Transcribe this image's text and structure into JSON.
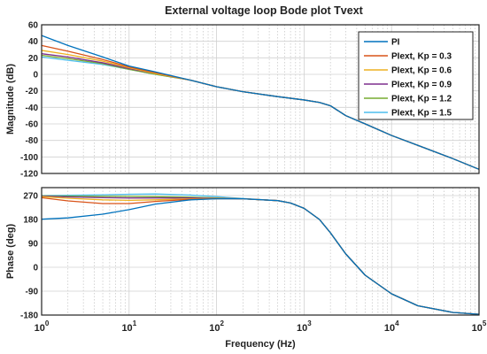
{
  "chart_data": [
    {
      "type": "line",
      "title": "External voltage loop Bode plot Tvext",
      "ylabel": "Magnitude (dB)",
      "xscale": "log",
      "xlim": [
        1,
        100000
      ],
      "ylim": [
        -120,
        60
      ],
      "xticks": [
        1,
        10,
        100,
        1000,
        10000,
        100000
      ],
      "xtick_labels": [
        {
          "base": "10",
          "exp": "0"
        },
        {
          "base": "10",
          "exp": "1"
        },
        {
          "base": "10",
          "exp": "2"
        },
        {
          "base": "10",
          "exp": "3"
        },
        {
          "base": "10",
          "exp": "4"
        },
        {
          "base": "10",
          "exp": "5"
        }
      ],
      "yticks": [
        60,
        40,
        20,
        0,
        -20,
        -40,
        -60,
        -80,
        -100,
        -120
      ],
      "grid": true,
      "legend_position": "top-right",
      "series": [
        {
          "name": "PI",
          "color": "#0072BD",
          "x": [
            1,
            2,
            5,
            10,
            20,
            50,
            100,
            200,
            500,
            1000,
            1500,
            2000,
            3000,
            5000,
            10000,
            20000,
            50000,
            100000
          ],
          "y": [
            47,
            35,
            21,
            10,
            3,
            -7,
            -15,
            -21,
            -27,
            -31,
            -34,
            -38,
            -50,
            -60,
            -74,
            -86,
            -102,
            -115
          ]
        },
        {
          "name": "PIext, Kp = 0.3",
          "color": "#D95319",
          "x": [
            1,
            2,
            5,
            10,
            20,
            50,
            100,
            200,
            500,
            1000,
            1500,
            2000,
            3000,
            5000,
            10000,
            20000,
            50000,
            100000
          ],
          "y": [
            35,
            28,
            18,
            9,
            2,
            -7,
            -15,
            -21,
            -27,
            -31,
            -34,
            -38,
            -50,
            -60,
            -74,
            -86,
            -102,
            -115
          ]
        },
        {
          "name": "PIext, Kp = 0.6",
          "color": "#EDB120",
          "x": [
            1,
            2,
            5,
            10,
            20,
            50,
            100,
            200,
            500,
            1000,
            1500,
            2000,
            3000,
            5000,
            10000,
            20000,
            50000,
            100000
          ],
          "y": [
            29,
            24,
            16,
            8,
            1,
            -7,
            -15,
            -21,
            -27,
            -31,
            -34,
            -38,
            -50,
            -60,
            -74,
            -86,
            -102,
            -115
          ]
        },
        {
          "name": "PIext, Kp = 0.9",
          "color": "#7E2F8E",
          "x": [
            1,
            2,
            5,
            10,
            20,
            50,
            100,
            200,
            500,
            1000,
            1500,
            2000,
            3000,
            5000,
            10000,
            20000,
            50000,
            100000
          ],
          "y": [
            25,
            21,
            14,
            7,
            1,
            -7,
            -15,
            -21,
            -27,
            -31,
            -34,
            -38,
            -50,
            -60,
            -74,
            -86,
            -102,
            -115
          ]
        },
        {
          "name": "PIext, Kp = 1.2",
          "color": "#77AC30",
          "x": [
            1,
            2,
            5,
            10,
            20,
            50,
            100,
            200,
            500,
            1000,
            1500,
            2000,
            3000,
            5000,
            10000,
            20000,
            50000,
            100000
          ],
          "y": [
            23,
            19,
            13,
            6,
            0,
            -7,
            -15,
            -21,
            -27,
            -31,
            -34,
            -38,
            -50,
            -60,
            -74,
            -86,
            -102,
            -115
          ]
        },
        {
          "name": "PIext, Kp = 1.5",
          "color": "#4DBEEE",
          "x": [
            1,
            2,
            5,
            10,
            20,
            50,
            100,
            200,
            500,
            1000,
            1500,
            2000,
            3000,
            5000,
            10000,
            20000,
            50000,
            100000
          ],
          "y": [
            21,
            17,
            12,
            6,
            0,
            -7,
            -15,
            -21,
            -27,
            -31,
            -34,
            -38,
            -50,
            -60,
            -74,
            -86,
            -102,
            -115
          ]
        }
      ]
    },
    {
      "type": "line",
      "title": "",
      "xlabel": "Frequency  (Hz)",
      "ylabel": "Phase (deg)",
      "xscale": "log",
      "xlim": [
        1,
        100000
      ],
      "ylim": [
        -180,
        300
      ],
      "xticks": [
        1,
        10,
        100,
        1000,
        10000,
        100000
      ],
      "xtick_labels": [
        {
          "base": "10",
          "exp": "0"
        },
        {
          "base": "10",
          "exp": "1"
        },
        {
          "base": "10",
          "exp": "2"
        },
        {
          "base": "10",
          "exp": "3"
        },
        {
          "base": "10",
          "exp": "4"
        },
        {
          "base": "10",
          "exp": "5"
        }
      ],
      "yticks": [
        270,
        180,
        90,
        0,
        -90,
        -180
      ],
      "grid": true,
      "series": [
        {
          "name": "PI",
          "color": "#0072BD",
          "x": [
            1,
            2,
            5,
            10,
            20,
            50,
            100,
            200,
            500,
            700,
            1000,
            1500,
            2000,
            3000,
            5000,
            10000,
            20000,
            50000,
            100000
          ],
          "y": [
            181,
            186,
            200,
            217,
            238,
            254,
            258,
            258,
            251,
            242,
            222,
            180,
            130,
            50,
            -30,
            -100,
            -145,
            -170,
            -177
          ]
        },
        {
          "name": "PIext, Kp = 0.3",
          "color": "#D95319",
          "x": [
            1,
            2,
            5,
            10,
            20,
            50,
            100,
            200,
            500,
            700,
            1000,
            1500,
            2000,
            3000,
            5000,
            10000,
            20000,
            50000,
            100000
          ],
          "y": [
            262,
            250,
            240,
            240,
            248,
            256,
            258,
            258,
            251,
            242,
            222,
            180,
            130,
            50,
            -30,
            -100,
            -145,
            -170,
            -177
          ]
        },
        {
          "name": "PIext, Kp = 0.6",
          "color": "#EDB120",
          "x": [
            1,
            2,
            5,
            10,
            20,
            50,
            100,
            200,
            500,
            700,
            1000,
            1500,
            2000,
            3000,
            5000,
            10000,
            20000,
            50000,
            100000
          ],
          "y": [
            266,
            260,
            254,
            252,
            254,
            258,
            259,
            258,
            251,
            242,
            222,
            180,
            130,
            50,
            -30,
            -100,
            -145,
            -170,
            -177
          ]
        },
        {
          "name": "PIext, Kp = 0.9",
          "color": "#7E2F8E",
          "x": [
            1,
            2,
            5,
            10,
            20,
            50,
            100,
            200,
            500,
            700,
            1000,
            1500,
            2000,
            3000,
            5000,
            10000,
            20000,
            50000,
            100000
          ],
          "y": [
            268,
            265,
            262,
            261,
            261,
            261,
            260,
            258,
            251,
            242,
            222,
            180,
            130,
            50,
            -30,
            -100,
            -145,
            -170,
            -177
          ]
        },
        {
          "name": "PIext, Kp = 1.2",
          "color": "#77AC30",
          "x": [
            1,
            2,
            5,
            10,
            20,
            50,
            100,
            200,
            500,
            700,
            1000,
            1500,
            2000,
            3000,
            5000,
            10000,
            20000,
            50000,
            100000
          ],
          "y": [
            269,
            268,
            267,
            267,
            266,
            264,
            261,
            258,
            251,
            242,
            222,
            180,
            130,
            50,
            -30,
            -100,
            -145,
            -170,
            -177
          ]
        },
        {
          "name": "PIext, Kp = 1.5",
          "color": "#4DBEEE",
          "x": [
            1,
            2,
            5,
            10,
            20,
            50,
            100,
            200,
            500,
            700,
            1000,
            1500,
            2000,
            3000,
            5000,
            10000,
            20000,
            50000,
            100000
          ],
          "y": [
            270,
            271,
            273,
            275,
            276,
            272,
            266,
            259,
            251,
            242,
            222,
            180,
            130,
            50,
            -30,
            -100,
            -145,
            -170,
            -177
          ]
        }
      ]
    }
  ]
}
